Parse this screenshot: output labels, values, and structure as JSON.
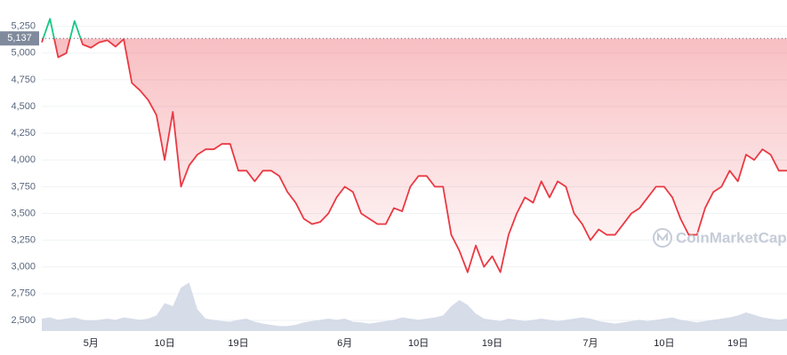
{
  "chart_data": {
    "type": "line",
    "categories": [
      null,
      null,
      null,
      null,
      null,
      null,
      "5月",
      null,
      null,
      null,
      null,
      null,
      null,
      null,
      null,
      "10日",
      null,
      null,
      null,
      null,
      null,
      null,
      null,
      null,
      "19日",
      null,
      null,
      null,
      null,
      null,
      null,
      null,
      null,
      null,
      null,
      null,
      null,
      "6月",
      null,
      null,
      null,
      null,
      null,
      null,
      null,
      null,
      "10日",
      null,
      null,
      null,
      null,
      null,
      null,
      null,
      null,
      "19日",
      null,
      null,
      null,
      null,
      null,
      null,
      null,
      null,
      null,
      null,
      null,
      "7月",
      null,
      null,
      null,
      null,
      null,
      null,
      null,
      null,
      "10日",
      null,
      null,
      null,
      null,
      null,
      null,
      null,
      null,
      "19日",
      null,
      null,
      null,
      null,
      null,
      null
    ],
    "series": [
      {
        "name": "Price",
        "up_color": "#16c784",
        "color": "#ea3943",
        "values": [
          5100,
          5320,
          4960,
          5000,
          5300,
          5080,
          5050,
          5100,
          5120,
          5060,
          5130,
          4720,
          4650,
          4560,
          4420,
          4000,
          4450,
          3750,
          3950,
          4050,
          4100,
          4100,
          4150,
          4150,
          3900,
          3900,
          3800,
          3900,
          3900,
          3850,
          3700,
          3600,
          3450,
          3400,
          3420,
          3500,
          3650,
          3750,
          3700,
          3500,
          3450,
          3400,
          3400,
          3550,
          3520,
          3750,
          3850,
          3850,
          3750,
          3750,
          3300,
          3150,
          2950,
          3200,
          3000,
          3100,
          2950,
          3300,
          3500,
          3650,
          3600,
          3800,
          3650,
          3800,
          3750,
          3500,
          3400,
          3250,
          3350,
          3300,
          3300,
          3400,
          3500,
          3550,
          3650,
          3750,
          3750,
          3650,
          3450,
          3300,
          3300,
          3550,
          3700,
          3750,
          3900,
          3800,
          4050,
          4000,
          4100,
          4050,
          3900,
          3900
        ]
      },
      {
        "name": "Volume",
        "axis": "volume",
        "color": "#cfd6e4",
        "values": [
          20,
          22,
          18,
          20,
          22,
          18,
          17,
          18,
          20,
          18,
          22,
          20,
          18,
          20,
          25,
          45,
          40,
          70,
          78,
          35,
          20,
          18,
          16,
          15,
          18,
          20,
          15,
          12,
          10,
          8,
          8,
          10,
          14,
          16,
          18,
          20,
          18,
          20,
          15,
          14,
          12,
          14,
          16,
          18,
          22,
          20,
          18,
          20,
          22,
          25,
          40,
          50,
          42,
          28,
          20,
          18,
          16,
          20,
          18,
          16,
          18,
          20,
          18,
          16,
          18,
          20,
          22,
          20,
          16,
          14,
          12,
          14,
          16,
          18,
          16,
          18,
          20,
          22,
          18,
          16,
          14,
          16,
          18,
          20,
          22,
          25,
          30,
          26,
          22,
          20,
          18,
          20
        ]
      }
    ],
    "ylim": [
      2400,
      5380
    ],
    "yticks": [
      {
        "value": 2500,
        "label": "2,500"
      },
      {
        "value": 2750,
        "label": "2,750"
      },
      {
        "value": 3000,
        "label": "3,000"
      },
      {
        "value": 3250,
        "label": "3,250"
      },
      {
        "value": 3500,
        "label": "3,500"
      },
      {
        "value": 3750,
        "label": "3,750"
      },
      {
        "value": 4000,
        "label": "4,000"
      },
      {
        "value": 4250,
        "label": "4,250"
      },
      {
        "value": 4500,
        "label": "4,500"
      },
      {
        "value": 4750,
        "label": "4,750"
      },
      {
        "value": 5000,
        "label": "5,000"
      },
      {
        "value": 5250,
        "label": "5,250"
      }
    ],
    "volume_lim": [
      0,
      100
    ],
    "reference": {
      "value": 5137,
      "label": "5,137",
      "color": "#808a9d"
    },
    "grid": true,
    "watermark": "CoinMarketCap"
  }
}
